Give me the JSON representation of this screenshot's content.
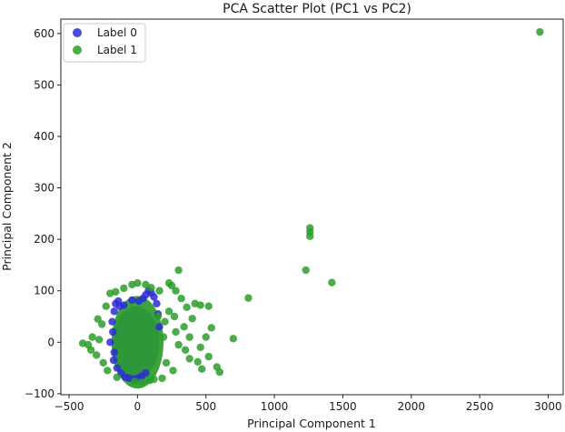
{
  "chart_data": {
    "type": "scatter",
    "title": "PCA Scatter Plot (PC1 vs PC2)",
    "xlabel": "Principal Component 1",
    "ylabel": "Principal Component 2",
    "xlim": [
      -560,
      3110
    ],
    "ylim": [
      -102,
      628
    ],
    "xticks": [
      -500,
      0,
      500,
      1000,
      1500,
      2000,
      2500,
      3000
    ],
    "yticks": [
      -100,
      0,
      100,
      200,
      300,
      400,
      500,
      600
    ],
    "grid": false,
    "legend_position": "top-left",
    "series": [
      {
        "name": "Label 0",
        "color": "#2b2bd6",
        "cluster": {
          "cx": -10,
          "cy": 0,
          "rx": 170,
          "ry": 70
        },
        "points": [
          [
            -160,
            75
          ],
          [
            -140,
            80
          ],
          [
            -170,
            60
          ],
          [
            -175,
            -35
          ],
          [
            -150,
            -50
          ],
          [
            -120,
            -60
          ],
          [
            -90,
            -68
          ],
          [
            -60,
            -70
          ],
          [
            -30,
            -72
          ],
          [
            0,
            -70
          ],
          [
            30,
            -66
          ],
          [
            60,
            -60
          ],
          [
            -180,
            20
          ],
          [
            -185,
            40
          ],
          [
            -130,
            70
          ],
          [
            -100,
            72
          ],
          [
            40,
            85
          ],
          [
            60,
            92
          ],
          [
            80,
            100
          ],
          [
            100,
            96
          ],
          [
            120,
            88
          ],
          [
            140,
            75
          ],
          [
            150,
            55
          ],
          [
            160,
            30
          ],
          [
            -200,
            0
          ],
          [
            -170,
            -20
          ],
          [
            -40,
            82
          ],
          [
            10,
            80
          ]
        ]
      },
      {
        "name": "Label 1",
        "color": "#2a9d2a",
        "cluster": {
          "cx": 0,
          "cy": 0,
          "rx": 190,
          "ry": 90
        },
        "points": [
          [
            2940,
            603
          ],
          [
            1260,
            222
          ],
          [
            1260,
            214
          ],
          [
            1260,
            206
          ],
          [
            1230,
            140
          ],
          [
            1420,
            116
          ],
          [
            810,
            86
          ],
          [
            300,
            140
          ],
          [
            700,
            7
          ],
          [
            580,
            -48
          ],
          [
            600,
            -58
          ],
          [
            520,
            -28
          ],
          [
            440,
            -38
          ],
          [
            470,
            -52
          ],
          [
            380,
            -32
          ],
          [
            400,
            46
          ],
          [
            360,
            68
          ],
          [
            320,
            85
          ],
          [
            280,
            100
          ],
          [
            250,
            110
          ],
          [
            420,
            75
          ],
          [
            460,
            72
          ],
          [
            520,
            70
          ],
          [
            540,
            28
          ],
          [
            500,
            10
          ],
          [
            460,
            -10
          ],
          [
            350,
            -15
          ],
          [
            300,
            -5
          ],
          [
            280,
            20
          ],
          [
            270,
            50
          ],
          [
            230,
            60
          ],
          [
            200,
            40
          ],
          [
            210,
            -40
          ],
          [
            260,
            -55
          ],
          [
            180,
            -70
          ],
          [
            120,
            -72
          ],
          [
            -360,
            -5
          ],
          [
            -400,
            -2
          ],
          [
            -340,
            -15
          ],
          [
            -300,
            -25
          ],
          [
            -280,
            5
          ],
          [
            -260,
            35
          ],
          [
            -290,
            45
          ],
          [
            -230,
            70
          ],
          [
            -200,
            95
          ],
          [
            -160,
            98
          ],
          [
            -100,
            105
          ],
          [
            -40,
            112
          ],
          [
            0,
            115
          ],
          [
            60,
            112
          ],
          [
            100,
            106
          ],
          [
            160,
            100
          ],
          [
            230,
            115
          ],
          [
            -330,
            10
          ],
          [
            380,
            10
          ],
          [
            340,
            30
          ],
          [
            -250,
            -40
          ],
          [
            -220,
            -55
          ],
          [
            -150,
            -68
          ],
          [
            90,
            -74
          ],
          [
            30,
            -78
          ],
          [
            -20,
            -76
          ],
          [
            150,
            50
          ],
          [
            190,
            10
          ]
        ]
      }
    ]
  }
}
